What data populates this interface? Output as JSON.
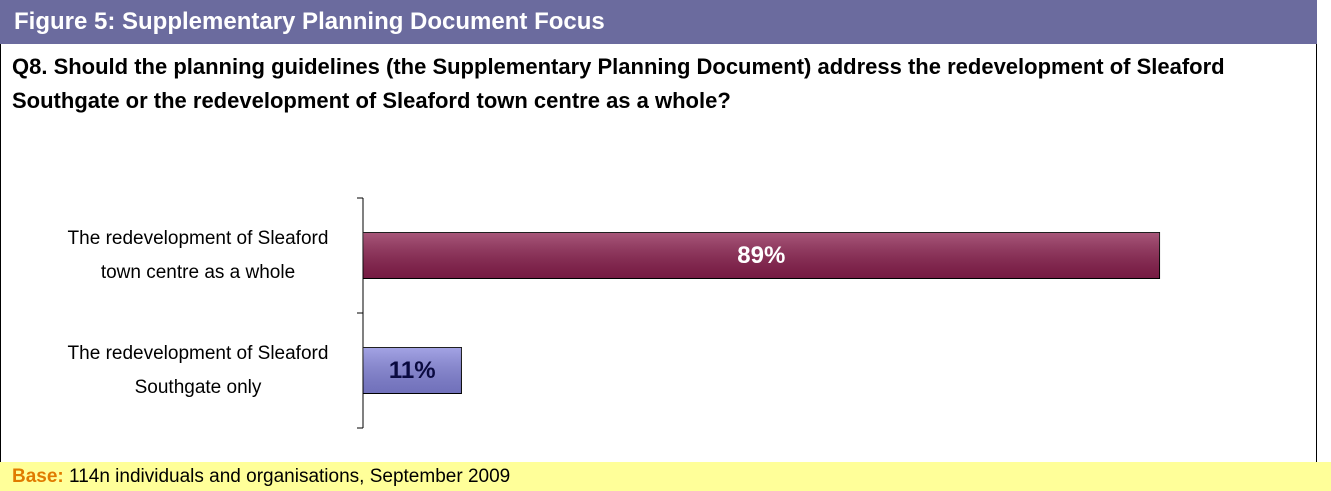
{
  "header": {
    "title": "Figure 5:  Supplementary Planning Document Focus"
  },
  "question": "Q8.  Should the planning guidelines (the Supplementary Planning Document) address the redevelopment of Sleaford Southgate or the redevelopment of Sleaford town centre as a whole?",
  "chart_data": {
    "type": "hbar",
    "categories": [
      "The redevelopment of Sleaford town centre as a whole",
      "The redevelopment of Sleaford Southgate only"
    ],
    "values": [
      89,
      11
    ],
    "value_labels": [
      "89%",
      "11%"
    ],
    "colors": [
      "#8b1f4e",
      "#8585dc"
    ],
    "xlim": [
      0,
      100
    ]
  },
  "footer": {
    "label": "Base:",
    "text": "114n  individuals and organisations, September 2009"
  }
}
